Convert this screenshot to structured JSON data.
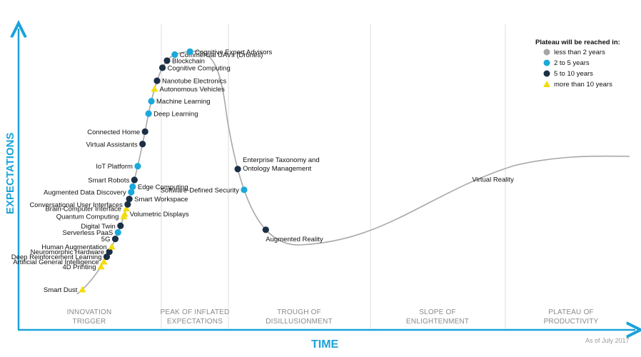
{
  "chart_data": {
    "type": "scatter",
    "xlabel": "TIME",
    "ylabel": "EXPECTATIONS",
    "note": "As of July 2017",
    "phases": [
      {
        "line1": "INNOVATION",
        "line2": "TRIGGER"
      },
      {
        "line1": "PEAK OF INFLATED",
        "line2": "EXPECTATIONS"
      },
      {
        "line1": "TROUGH OF",
        "line2": "DISILLUSIONMENT"
      },
      {
        "line1": "SLOPE OF",
        "line2": "ENLIGHTENMENT"
      },
      {
        "line1": "PLATEAU OF",
        "line2": "PRODUCTIVITY"
      }
    ],
    "legend": {
      "title": "Plateau will be reached in:",
      "items": [
        {
          "key": "lt2",
          "label": "less than 2 years",
          "color": "#a6a6a6",
          "shape": "circle"
        },
        {
          "key": "2to5",
          "label": "2 to 5 years",
          "color": "#1ba8dc",
          "shape": "circle"
        },
        {
          "key": "5to10",
          "label": "5 to 10 years",
          "color": "#1b2f45",
          "shape": "circle"
        },
        {
          "key": "gt10",
          "label": "more than 10 years",
          "color": "#f4dc0c",
          "shape": "triangle"
        }
      ]
    },
    "points": [
      {
        "label": "Smart Dust",
        "t": 0.025,
        "cat": "gt10",
        "side": "left"
      },
      {
        "label": "4D Printing",
        "t": 0.13,
        "cat": "gt10",
        "side": "left"
      },
      {
        "label": "Artificial General Intelligence",
        "t": 0.15,
        "cat": "gt10",
        "side": "left"
      },
      {
        "label": "Deep Reinforcement Learning",
        "t": 0.17,
        "cat": "5to10",
        "side": "left"
      },
      {
        "label": "Neuromorphic Hardware",
        "t": 0.19,
        "cat": "5to10",
        "side": "left"
      },
      {
        "label": "Human Augmentation",
        "t": 0.21,
        "cat": "gt10",
        "side": "left"
      },
      {
        "label": "5G",
        "t": 0.24,
        "cat": "5to10",
        "side": "left"
      },
      {
        "label": "Serverless PaaS",
        "t": 0.265,
        "cat": "2to5",
        "side": "left"
      },
      {
        "label": "Digital Twin",
        "t": 0.29,
        "cat": "5to10",
        "side": "left"
      },
      {
        "label": "Quantum Computing",
        "t": 0.325,
        "cat": "gt10",
        "side": "left"
      },
      {
        "label": "Volumetric Displays",
        "t": 0.335,
        "cat": "gt10",
        "side": "right"
      },
      {
        "label": "Brain-Computer Interface",
        "t": 0.355,
        "cat": "gt10",
        "side": "left"
      },
      {
        "label": "Conversational User Interfaces",
        "t": 0.37,
        "cat": "5to10",
        "side": "left"
      },
      {
        "label": "Smart Workspace",
        "t": 0.39,
        "cat": "5to10",
        "side": "right"
      },
      {
        "label": "Augmented Data Discovery",
        "t": 0.415,
        "cat": "2to5",
        "side": "left"
      },
      {
        "label": "Edge Computing",
        "t": 0.435,
        "cat": "2to5",
        "side": "right"
      },
      {
        "label": "Smart Robots",
        "t": 0.46,
        "cat": "5to10",
        "side": "left"
      },
      {
        "label": "IoT Platform",
        "t": 0.51,
        "cat": "2to5",
        "side": "left"
      },
      {
        "label": "Virtual Assistants",
        "t": 0.59,
        "cat": "5to10",
        "side": "left"
      },
      {
        "label": "Connected Home",
        "t": 0.635,
        "cat": "5to10",
        "side": "left"
      },
      {
        "label": "Deep Learning",
        "t": 0.7,
        "cat": "2to5",
        "side": "right"
      },
      {
        "label": "Machine Learning",
        "t": 0.745,
        "cat": "2to5",
        "side": "right"
      },
      {
        "label": "Autonomous Vehicles",
        "t": 0.79,
        "cat": "gt10",
        "side": "right"
      },
      {
        "label": "Nanotube Electronics",
        "t": 0.82,
        "cat": "5to10",
        "side": "right"
      },
      {
        "label": "Cognitive Computing",
        "t": 0.87,
        "cat": "5to10",
        "side": "right"
      },
      {
        "label": "Blockchain",
        "t": 0.9,
        "cat": "5to10",
        "side": "right"
      },
      {
        "label": "Commercial UAVs (Drones)",
        "t": 0.935,
        "cat": "2to5",
        "side": "right"
      },
      {
        "label": "Cognitive Expert Advisors",
        "t": 0.99,
        "cat": "2to5",
        "side": "right"
      },
      {
        "label": "Enterprise Taxonomy and",
        "label2": "Ontology Management",
        "t": 1.56,
        "cat": "5to10",
        "side": "right"
      },
      {
        "label": "Software-Defined Security",
        "t": 1.65,
        "cat": "2to5",
        "side": "left"
      },
      {
        "label": "Augmented Reality",
        "t": 1.84,
        "cat": "5to10",
        "side": "below"
      },
      {
        "label": "Virtual Reality",
        "t": 3.2,
        "cat": "2to5",
        "side": "text"
      }
    ]
  }
}
